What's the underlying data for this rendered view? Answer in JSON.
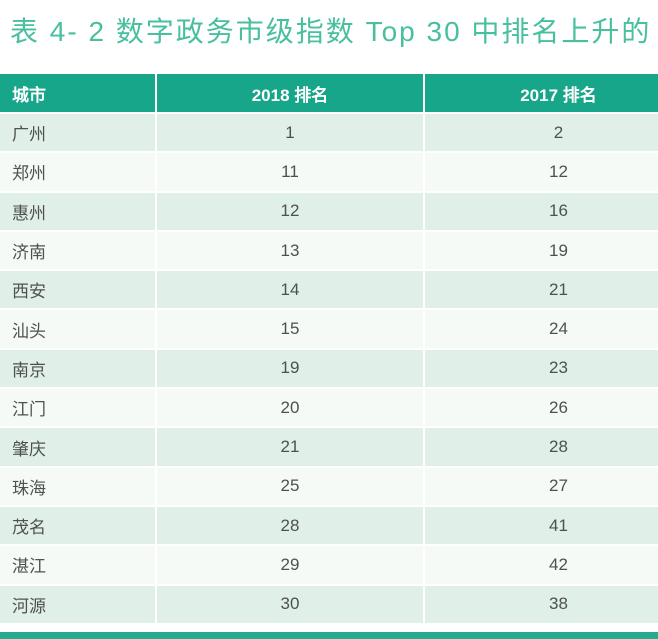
{
  "caption": "表 4- 2 数字政务市级指数 Top 30 中排名上升的",
  "table": {
    "columns": [
      "城市",
      "2018 排名",
      "2017 排名"
    ],
    "rows": [
      {
        "city": "广州",
        "rank_2018": "1",
        "rank_2017": "2"
      },
      {
        "city": "郑州",
        "rank_2018": "11",
        "rank_2017": "12"
      },
      {
        "city": "惠州",
        "rank_2018": "12",
        "rank_2017": "16"
      },
      {
        "city": "济南",
        "rank_2018": "13",
        "rank_2017": "19"
      },
      {
        "city": "西安",
        "rank_2018": "14",
        "rank_2017": "21"
      },
      {
        "city": "汕头",
        "rank_2018": "15",
        "rank_2017": "24"
      },
      {
        "city": "南京",
        "rank_2018": "19",
        "rank_2017": "23"
      },
      {
        "city": "江门",
        "rank_2018": "20",
        "rank_2017": "26"
      },
      {
        "city": "肇庆",
        "rank_2018": "21",
        "rank_2017": "28"
      },
      {
        "city": "珠海",
        "rank_2018": "25",
        "rank_2017": "27"
      },
      {
        "city": "茂名",
        "rank_2018": "28",
        "rank_2017": "41"
      },
      {
        "city": "湛江",
        "rank_2018": "29",
        "rank_2017": "42"
      },
      {
        "city": "河源",
        "rank_2018": "30",
        "rank_2017": "38"
      }
    ]
  },
  "colors": {
    "header_bg": "#18a68a",
    "title_text": "#48bf9f",
    "row_green": "#e0efe8",
    "row_light": "#f5faf7",
    "cell_text": "#4e524e",
    "header_text": "#ffffff",
    "bottom_bar": "#27a98e"
  }
}
